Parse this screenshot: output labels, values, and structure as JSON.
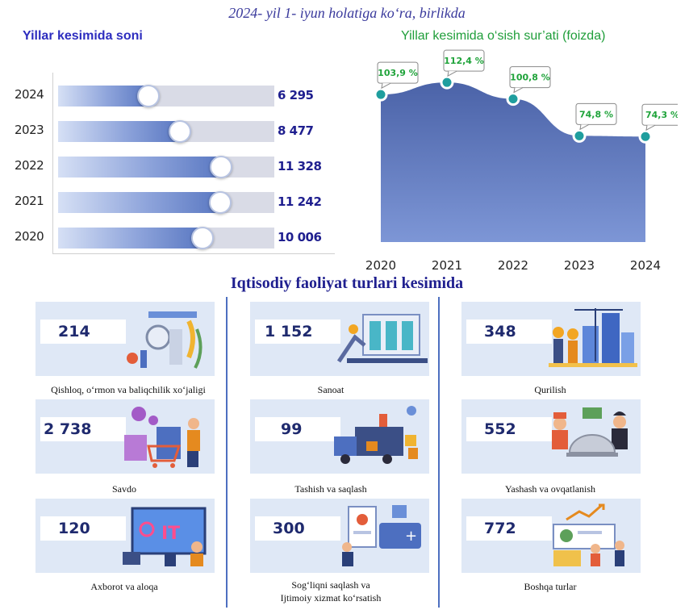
{
  "header": {
    "title": "2024- yil 1- iyun holatiga ko‘ra, birlikda",
    "left_title": "Yillar kesimida soni",
    "right_title": "Yillar kesimida o‘sish sur’ati (foizda)"
  },
  "section_title": "Iqtisodiy faoliyat turlari kesimida",
  "colors": {
    "bar_gradient_end": "#5a78c2",
    "area_fill": "#5b74b5",
    "marker": "#1f9e9e",
    "label_green": "#1fa33a"
  },
  "chart_data": [
    {
      "type": "bar",
      "orientation": "horizontal",
      "title": "Yillar kesimida soni",
      "categories": [
        "2024",
        "2023",
        "2022",
        "2021",
        "2020"
      ],
      "values": [
        6295,
        8477,
        11328,
        11242,
        10006
      ],
      "value_labels": [
        "6 295",
        "8 477",
        "11 328",
        "11 242",
        "10 006"
      ],
      "xlim": [
        0,
        15000
      ]
    },
    {
      "type": "area",
      "title": "Yillar kesimida o‘sish sur’ati (foizda)",
      "x": [
        "2020",
        "2021",
        "2022",
        "2023",
        "2024"
      ],
      "values": [
        103.9,
        112.4,
        100.8,
        74.8,
        74.3
      ],
      "value_labels": [
        "103,9 %",
        "112,4 %",
        "100,8 %",
        "74,8 %",
        "74,3 %"
      ],
      "ylim": [
        0,
        125
      ]
    }
  ],
  "cards": [
    {
      "value": "214",
      "label": "Qishloq, o‘rmon va baliqchilik xo‘jaligi",
      "icon": "agriculture-icon"
    },
    {
      "value": "1 152",
      "label": "Sanoat",
      "icon": "factory-icon"
    },
    {
      "value": "348",
      "label": "Qurilish",
      "icon": "construction-icon"
    },
    {
      "value": "2 738",
      "label": "Savdo",
      "icon": "shopping-icon"
    },
    {
      "value": "99",
      "label": "Tashish va saqlash",
      "icon": "delivery-truck-icon"
    },
    {
      "value": "552",
      "label": "Yashash va ovqatlanish",
      "icon": "food-service-icon"
    },
    {
      "value": "120",
      "label": "Axborot va aloqa",
      "icon": "it-computer-icon"
    },
    {
      "value": "300",
      "label": "Sog‘liqni saqlash va Ijtimoiy xizmat ko‘rsatish",
      "label_line1": "Sog‘liqni saqlash va",
      "label_line2": "Ijtimoiy xizmat ko‘rsatish",
      "icon": "healthcare-icon"
    },
    {
      "value": "772",
      "label": "Boshqa turlar",
      "icon": "other-analytics-icon"
    }
  ],
  "illustration_labels": {
    "it": "IT"
  }
}
